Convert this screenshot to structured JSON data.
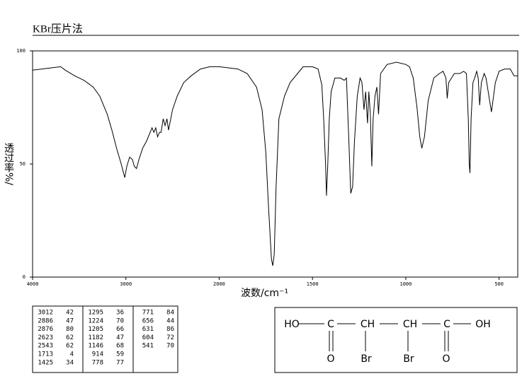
{
  "header": "KBr压片法",
  "chart_data": {
    "type": "line",
    "xlabel": "波数/cm⁻¹",
    "ylabel": "透过率%/",
    "xlim": [
      4000,
      400
    ],
    "ylim": [
      0,
      100
    ],
    "xbreak": 2000,
    "xbreak_factor": 2,
    "xticks": [
      4000,
      3000,
      2000,
      1500,
      1000,
      500
    ],
    "yticks": [
      0,
      50,
      100
    ],
    "color": "#000000",
    "x": [
      4000,
      3800,
      3700,
      3650,
      3550,
      3450,
      3350,
      3280,
      3200,
      3150,
      3100,
      3050,
      3012,
      2990,
      2960,
      2930,
      2910,
      2886,
      2860,
      2820,
      2780,
      2750,
      2720,
      2700,
      2680,
      2660,
      2640,
      2623,
      2600,
      2580,
      2560,
      2543,
      2500,
      2450,
      2380,
      2300,
      2200,
      2100,
      2000,
      1900,
      1850,
      1800,
      1770,
      1750,
      1735,
      1720,
      1713,
      1705,
      1695,
      1680,
      1650,
      1620,
      1580,
      1550,
      1500,
      1470,
      1450,
      1440,
      1430,
      1425,
      1418,
      1410,
      1400,
      1380,
      1350,
      1330,
      1318,
      1305,
      1295,
      1285,
      1275,
      1260,
      1245,
      1235,
      1224,
      1215,
      1205,
      1198,
      1190,
      1182,
      1175,
      1165,
      1155,
      1146,
      1135,
      1100,
      1050,
      1000,
      980,
      960,
      940,
      925,
      914,
      900,
      880,
      850,
      820,
      800,
      785,
      778,
      770,
      740,
      710,
      690,
      675,
      665,
      660,
      656,
      650,
      640,
      631,
      620,
      612,
      604,
      595,
      580,
      570,
      541,
      520,
      500,
      470,
      440,
      420,
      400
    ],
    "values": [
      91.5,
      92.5,
      93,
      91.5,
      89,
      87,
      84,
      80,
      72,
      65,
      57,
      50,
      44,
      49,
      53,
      52,
      49,
      48,
      52,
      57,
      60,
      63,
      66,
      64,
      66,
      62,
      64,
      64,
      70,
      67,
      70,
      65,
      74,
      80,
      86,
      89,
      92,
      93,
      93,
      92,
      90,
      84,
      74,
      55,
      30,
      8,
      5,
      10,
      40,
      70,
      80,
      86,
      90,
      93,
      93,
      92,
      85,
      70,
      50,
      36,
      50,
      70,
      82,
      88,
      88,
      87,
      88,
      60,
      37,
      40,
      60,
      80,
      88,
      86,
      74,
      82,
      68,
      82,
      72,
      49,
      70,
      80,
      84,
      72,
      90,
      94,
      95,
      94,
      93,
      88,
      75,
      62,
      57,
      62,
      78,
      88,
      90,
      91,
      88,
      79,
      86,
      90,
      90,
      91,
      90,
      70,
      50,
      46,
      70,
      86,
      88,
      91,
      88,
      76,
      86,
      90,
      88,
      73,
      86,
      91,
      92,
      92,
      89,
      89
    ]
  },
  "peaks": [
    [
      3012,
      42
    ],
    [
      2886,
      47
    ],
    [
      2876,
      80
    ],
    [
      2623,
      62
    ],
    [
      2543,
      62
    ],
    [
      1713,
      4
    ],
    [
      1425,
      34
    ],
    [
      1295,
      36
    ],
    [
      1224,
      70
    ],
    [
      1205,
      66
    ],
    [
      1182,
      47
    ],
    [
      1146,
      68
    ],
    [
      914,
      59
    ],
    [
      778,
      77
    ],
    [
      771,
      84
    ],
    [
      656,
      44
    ],
    [
      631,
      86
    ],
    [
      604,
      72
    ],
    [
      541,
      70
    ]
  ],
  "structure": {
    "top": [
      "HO",
      "C",
      "CH",
      "CH",
      "C",
      "OH"
    ],
    "bottom": [
      "O",
      "Br",
      "Br",
      "O"
    ]
  }
}
